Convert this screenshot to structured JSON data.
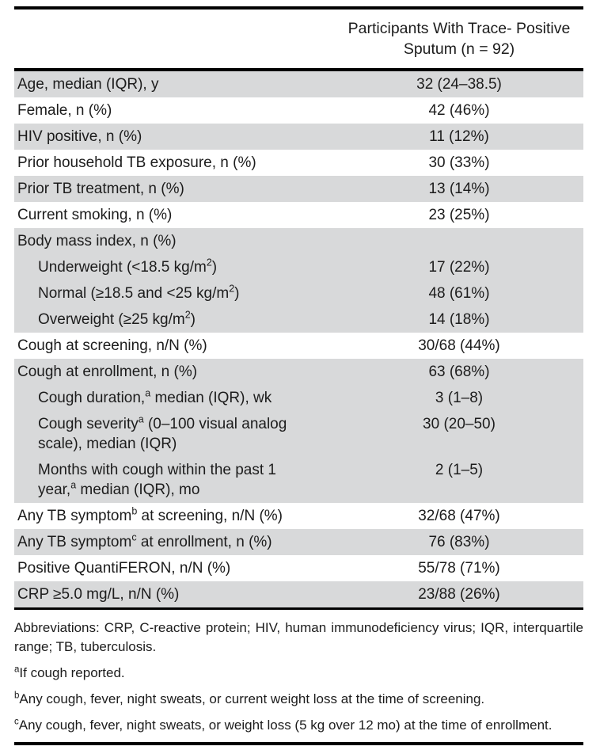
{
  "header": {
    "column_title_line1": "Participants With Trace- Positive",
    "column_title_line2": "Sputum (n = 92)"
  },
  "table": {
    "rows": [
      {
        "label": [
          {
            "t": "Age, median (IQR), y"
          }
        ],
        "value": "32 (24–38.5)",
        "shaded": true,
        "indent": false
      },
      {
        "label": [
          {
            "t": "Female, n (%)"
          }
        ],
        "value": "42 (46%)",
        "shaded": false,
        "indent": false
      },
      {
        "label": [
          {
            "t": "HIV positive, n (%)"
          }
        ],
        "value": "11 (12%)",
        "shaded": true,
        "indent": false
      },
      {
        "label": [
          {
            "t": "Prior household TB exposure, n (%)"
          }
        ],
        "value": "30 (33%)",
        "shaded": false,
        "indent": false
      },
      {
        "label": [
          {
            "t": "Prior TB treatment, n (%)"
          }
        ],
        "value": "13 (14%)",
        "shaded": true,
        "indent": false
      },
      {
        "label": [
          {
            "t": "Current smoking, n (%)"
          }
        ],
        "value": "23 (25%)",
        "shaded": false,
        "indent": false
      },
      {
        "label": [
          {
            "t": "Body mass index, n (%)"
          }
        ],
        "value": "",
        "shaded": true,
        "indent": false
      },
      {
        "label": [
          {
            "t": "Underweight (<18.5 kg/m"
          },
          {
            "sup": "2"
          },
          {
            "t": ")"
          }
        ],
        "value": "17 (22%)",
        "shaded": true,
        "indent": true
      },
      {
        "label": [
          {
            "t": "Normal (≥18.5 and <25 kg/m"
          },
          {
            "sup": "2"
          },
          {
            "t": ")"
          }
        ],
        "value": "48 (61%)",
        "shaded": true,
        "indent": true
      },
      {
        "label": [
          {
            "t": "Overweight (≥25 kg/m"
          },
          {
            "sup": "2"
          },
          {
            "t": ")"
          }
        ],
        "value": "14 (18%)",
        "shaded": true,
        "indent": true
      },
      {
        "label": [
          {
            "t": "Cough at screening, n/N (%)"
          }
        ],
        "value": "30/68 (44%)",
        "shaded": false,
        "indent": false
      },
      {
        "label": [
          {
            "t": "Cough at enrollment, n (%)"
          }
        ],
        "value": "63 (68%)",
        "shaded": true,
        "indent": false
      },
      {
        "label": [
          {
            "t": "Cough duration,"
          },
          {
            "sup": "a"
          },
          {
            "t": " median (IQR), wk"
          }
        ],
        "value": "3 (1–8)",
        "shaded": true,
        "indent": true
      },
      {
        "label": [
          {
            "t": "Cough severity"
          },
          {
            "sup": "a"
          },
          {
            "t": " (0–100 visual analog"
          },
          {
            "br": true
          },
          {
            "t": "scale), median (IQR)"
          }
        ],
        "value": "30 (20–50)",
        "shaded": true,
        "indent": true
      },
      {
        "label": [
          {
            "t": "Months with cough within the past 1"
          },
          {
            "br": true
          },
          {
            "t": "year,"
          },
          {
            "sup": "a"
          },
          {
            "t": " median (IQR), mo"
          }
        ],
        "value": "2 (1–5)",
        "shaded": true,
        "indent": true
      },
      {
        "label": [
          {
            "t": "Any TB symptom"
          },
          {
            "sup": "b"
          },
          {
            "t": " at screening, n/N (%)"
          }
        ],
        "value": "32/68 (47%)",
        "shaded": false,
        "indent": false
      },
      {
        "label": [
          {
            "t": "Any TB symptom"
          },
          {
            "sup": "c"
          },
          {
            "t": " at enrollment, n (%)"
          }
        ],
        "value": "76 (83%)",
        "shaded": true,
        "indent": false
      },
      {
        "label": [
          {
            "t": "Positive QuantiFERON, n/N (%)"
          }
        ],
        "value": "55/78 (71%)",
        "shaded": false,
        "indent": false
      },
      {
        "label": [
          {
            "t": "CRP ≥5.0 mg/L, n/N (%)"
          }
        ],
        "value": "23/88 (26%)",
        "shaded": true,
        "indent": false
      }
    ]
  },
  "footnotes": {
    "abbreviations": "Abbreviations: CRP, C-reactive protein; HIV, human immunodeficiency virus; IQR, interquartile range; TB, tuberculosis.",
    "notes": [
      {
        "marker": "a",
        "text": "If cough reported."
      },
      {
        "marker": "b",
        "text": "Any cough, fever, night sweats, or current weight loss at the time of screening."
      },
      {
        "marker": "c",
        "text": "Any cough, fever, night sweats, or weight loss (5 kg over 12 mo) at the time of enrollment."
      }
    ]
  },
  "colors": {
    "row_shading": "#d8d9da",
    "rule": "#000000",
    "text": "#1c1c1c"
  }
}
